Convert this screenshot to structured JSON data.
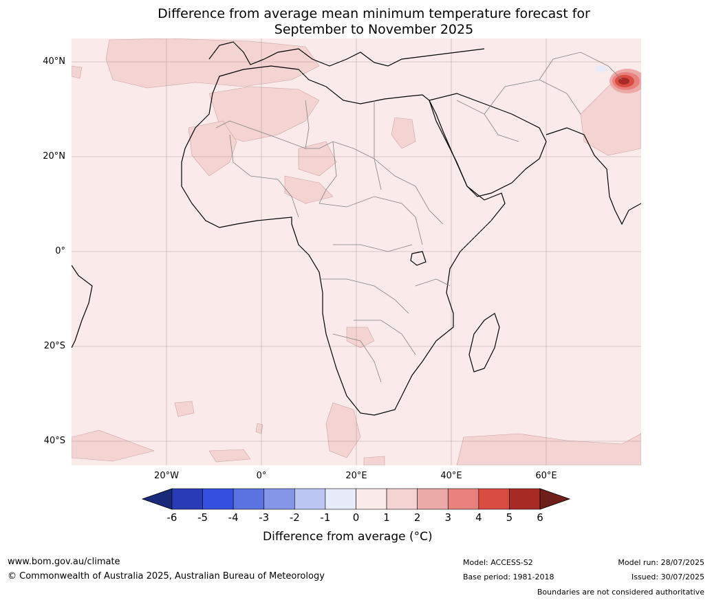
{
  "title_line1": "Difference from average mean minimum temperature forecast for",
  "title_line2": "September to November 2025",
  "lat_labels": [
    "40°N",
    "20°N",
    "0°",
    "20°S",
    "40°S"
  ],
  "lon_labels": [
    "20°W",
    "0°",
    "20°E",
    "40°E",
    "60°E"
  ],
  "legend": {
    "title": "Difference from average (°C)",
    "ticks": [
      "-6",
      "-5",
      "-4",
      "-3",
      "-2",
      "-1",
      "0",
      "1",
      "2",
      "3",
      "4",
      "5",
      "6"
    ],
    "colors": [
      "#1a2a7a",
      "#2a3cb5",
      "#3350e0",
      "#5a73e0",
      "#8596e8",
      "#bcc6f2",
      "#e8ebfa",
      "#fbeaea",
      "#f4d3d3",
      "#ebaaa8",
      "#e8807b",
      "#d94c41",
      "#a82a25",
      "#6e1f17"
    ]
  },
  "footer": {
    "website": "www.bom.gov.au/climate",
    "copyright": "© Commonwealth of Australia 2025, Australian Bureau of Meteorology",
    "model": "Model: ACCESS-S2",
    "base_period": "Base period: 1981-2018",
    "model_run": "Model run: 28/07/2025",
    "issued": "Issued: 30/07/2025",
    "disclaimer": "Boundaries are not considered authoritative"
  }
}
